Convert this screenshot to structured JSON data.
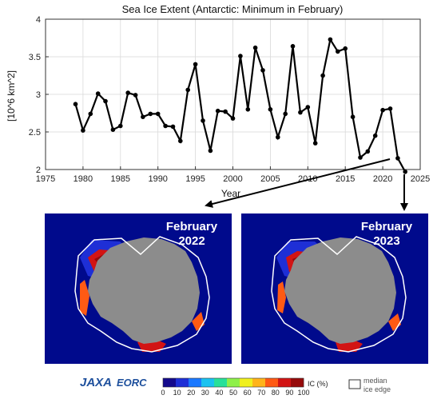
{
  "chart_data": {
    "type": "line",
    "title": "Sea Ice Extent (Antarctic: Minimum in February)",
    "xlabel": "Year",
    "ylabel": "[10^6 km^2]",
    "xlim": [
      1975,
      2025
    ],
    "ylim": [
      2,
      4
    ],
    "xticks": [
      "1975",
      "1980",
      "1985",
      "1990",
      "1995",
      "2000",
      "2005",
      "2010",
      "2015",
      "2020",
      "2025"
    ],
    "yticks": [
      "2",
      "2.5",
      "3",
      "3.5",
      "4"
    ],
    "grid": true,
    "x": [
      1979,
      1980,
      1981,
      1982,
      1983,
      1984,
      1985,
      1986,
      1987,
      1988,
      1989,
      1990,
      1991,
      1992,
      1993,
      1994,
      1995,
      1996,
      1997,
      1998,
      1999,
      2000,
      2001,
      2002,
      2003,
      2004,
      2005,
      2006,
      2007,
      2008,
      2009,
      2010,
      2011,
      2012,
      2013,
      2014,
      2015,
      2016,
      2017,
      2018,
      2019,
      2020,
      2021,
      2022,
      2023
    ],
    "values": [
      2.87,
      2.52,
      2.74,
      3.01,
      2.91,
      2.53,
      2.58,
      3.02,
      2.99,
      2.7,
      2.74,
      2.74,
      2.58,
      2.57,
      2.38,
      3.06,
      3.4,
      2.65,
      2.25,
      2.78,
      2.77,
      2.68,
      3.51,
      2.8,
      3.62,
      3.32,
      2.8,
      2.43,
      2.74,
      3.64,
      2.76,
      2.83,
      2.35,
      3.25,
      3.73,
      3.57,
      3.61,
      2.7,
      2.16,
      2.24,
      2.45,
      2.79,
      2.81,
      2.15,
      1.97
    ]
  },
  "maps": [
    {
      "title_month": "February",
      "title_year": "2022"
    },
    {
      "title_month": "February",
      "title_year": "2023"
    }
  ],
  "colorbar": {
    "ticks": [
      "0",
      "10",
      "20",
      "30",
      "40",
      "50",
      "60",
      "70",
      "80",
      "90",
      "100"
    ],
    "unit": "IC (%)",
    "colors": [
      "#140a8c",
      "#1e2fd6",
      "#1a78ff",
      "#1ac2f0",
      "#28e09a",
      "#8ef04a",
      "#f0f01e",
      "#ffb41a",
      "#ff5a14",
      "#d21414",
      "#960a0a"
    ]
  },
  "legend": {
    "median_line1": "median",
    "median_line2": "ice edge"
  },
  "logo": {
    "jaxa": "JAXA",
    "eorc": "EORC"
  },
  "colors": {
    "ocean": "#000a8c",
    "land": "#8c8c8c",
    "line": "#000000",
    "axis": "#333333",
    "grid": "#d9d9d9"
  }
}
